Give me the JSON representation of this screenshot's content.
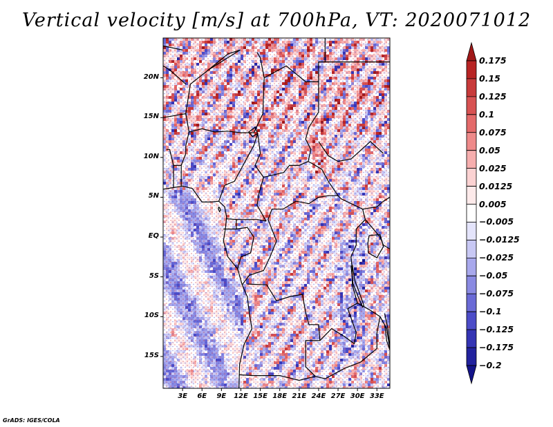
{
  "title": "Vertical velocity [m/s] at 700hPa, VT: 2020071012",
  "map": {
    "region": "Central Africa",
    "lat_range": [
      -19,
      25
    ],
    "lon_range": [
      0,
      35
    ],
    "lat_labels": [
      "20N",
      "15N",
      "10N",
      "5N",
      "EQ",
      "5S",
      "10S",
      "15S"
    ],
    "lon_labels": [
      "3E",
      "6E",
      "9E",
      "12E",
      "15E",
      "18E",
      "21E",
      "24E",
      "27E",
      "30E",
      "33E"
    ]
  },
  "colorbar": {
    "units": "m/s",
    "levels": [
      "0.175",
      "0.15",
      "0.125",
      "0.1",
      "0.075",
      "0.05",
      "0.025",
      "0.0125",
      "0.005",
      "−0.005",
      "−0.0125",
      "−0.025",
      "−0.05",
      "−0.075",
      "−0.1",
      "−0.125",
      "−0.175",
      "−0.2"
    ],
    "colors": [
      "#a01818",
      "#b82424",
      "#c83a3a",
      "#d85252",
      "#e46a6a",
      "#ee8a8a",
      "#f6aeae",
      "#fbd2d2",
      "#fdeaea",
      "#ffffff",
      "#e4e4fb",
      "#c8c8f4",
      "#a8a8ec",
      "#8a8ae2",
      "#6a6ad6",
      "#4c4cc8",
      "#3434b4",
      "#22229e",
      "#14148a"
    ]
  },
  "credit": "GrADS: IGES/COLA"
}
